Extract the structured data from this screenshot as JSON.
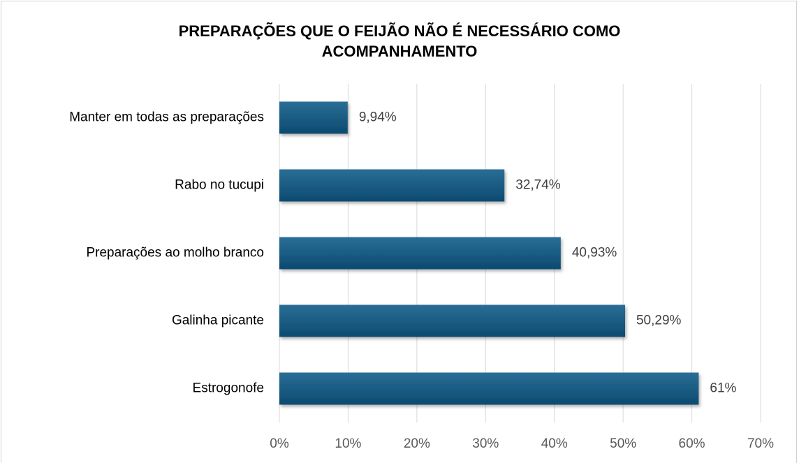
{
  "chart_data": {
    "type": "bar",
    "orientation": "horizontal",
    "title": "PREPARAÇÕES QUE O FEIJÃO NÃO É NECESSÁRIO COMO ACOMPANHAMENTO",
    "categories": [
      "Manter em todas as preparações",
      "Rabo no tucupi",
      "Preparações ao molho branco",
      "Galinha picante",
      "Estrogonofe"
    ],
    "values": [
      9.94,
      32.74,
      40.93,
      50.29,
      61
    ],
    "value_labels": [
      "9,94%",
      "32,74%",
      "40,93%",
      "50,29%",
      "61%"
    ],
    "color": "#165c85",
    "xlim": [
      0,
      70
    ],
    "xticks": [
      {
        "value": 0,
        "label": "0%"
      },
      {
        "value": 10,
        "label": "10%"
      },
      {
        "value": 20,
        "label": "20%"
      },
      {
        "value": 30,
        "label": "30%"
      },
      {
        "value": 40,
        "label": "40%"
      },
      {
        "value": 50,
        "label": "50%"
      },
      {
        "value": 60,
        "label": "60%"
      },
      {
        "value": 70,
        "label": "70%"
      }
    ],
    "grid": true
  }
}
